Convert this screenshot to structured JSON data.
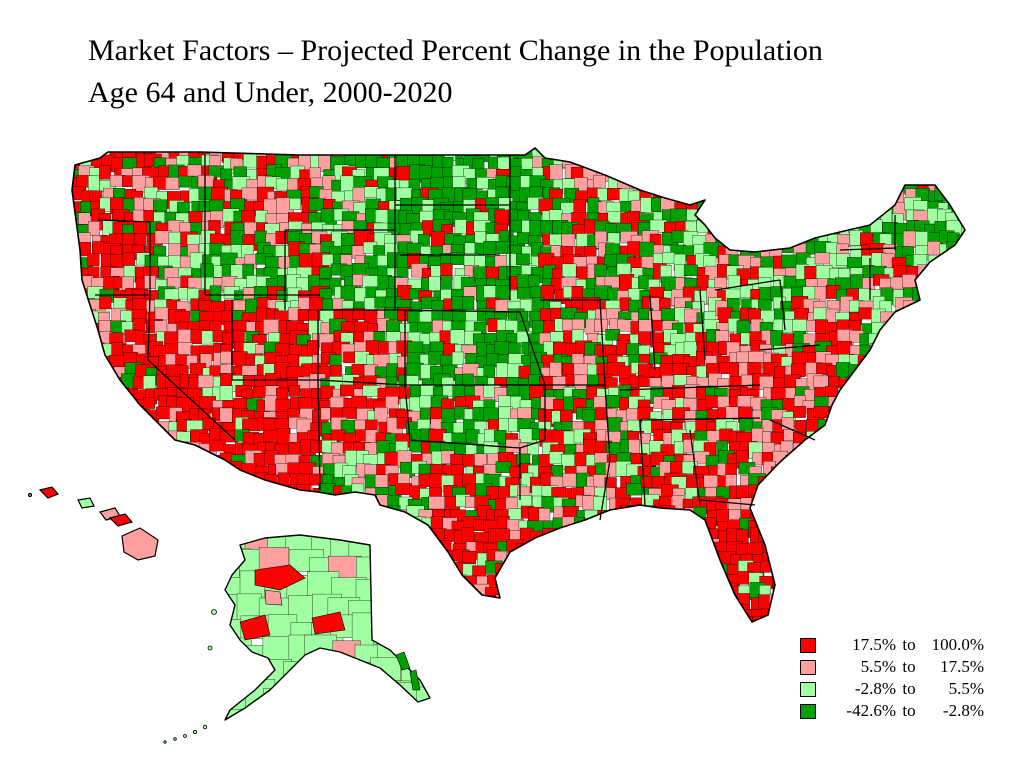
{
  "title": {
    "line1": "Market Factors – Projected Percent Change in the Population",
    "line2": "Age 64 and Under, 2000-2020"
  },
  "legend": {
    "items": [
      {
        "low": "17.5%",
        "sep": "to",
        "high": "100.0%",
        "color": "#ff0000"
      },
      {
        "low": "5.5%",
        "sep": "to",
        "high": "17.5%",
        "color": "#ffa0a0"
      },
      {
        "low": "-2.8%",
        "sep": "to",
        "high": "5.5%",
        "color": "#a0ffa0"
      },
      {
        "low": "-42.6%",
        "sep": "to",
        "high": "-2.8%",
        "color": "#00a000"
      }
    ]
  },
  "map": {
    "regions": [
      "Contiguous United States",
      "Alaska",
      "Hawaii"
    ],
    "classes": {
      "high": "#ff0000",
      "mid_high": "#ffa0a0",
      "mid_low": "#a0ffa0",
      "low": "#00a000"
    }
  }
}
